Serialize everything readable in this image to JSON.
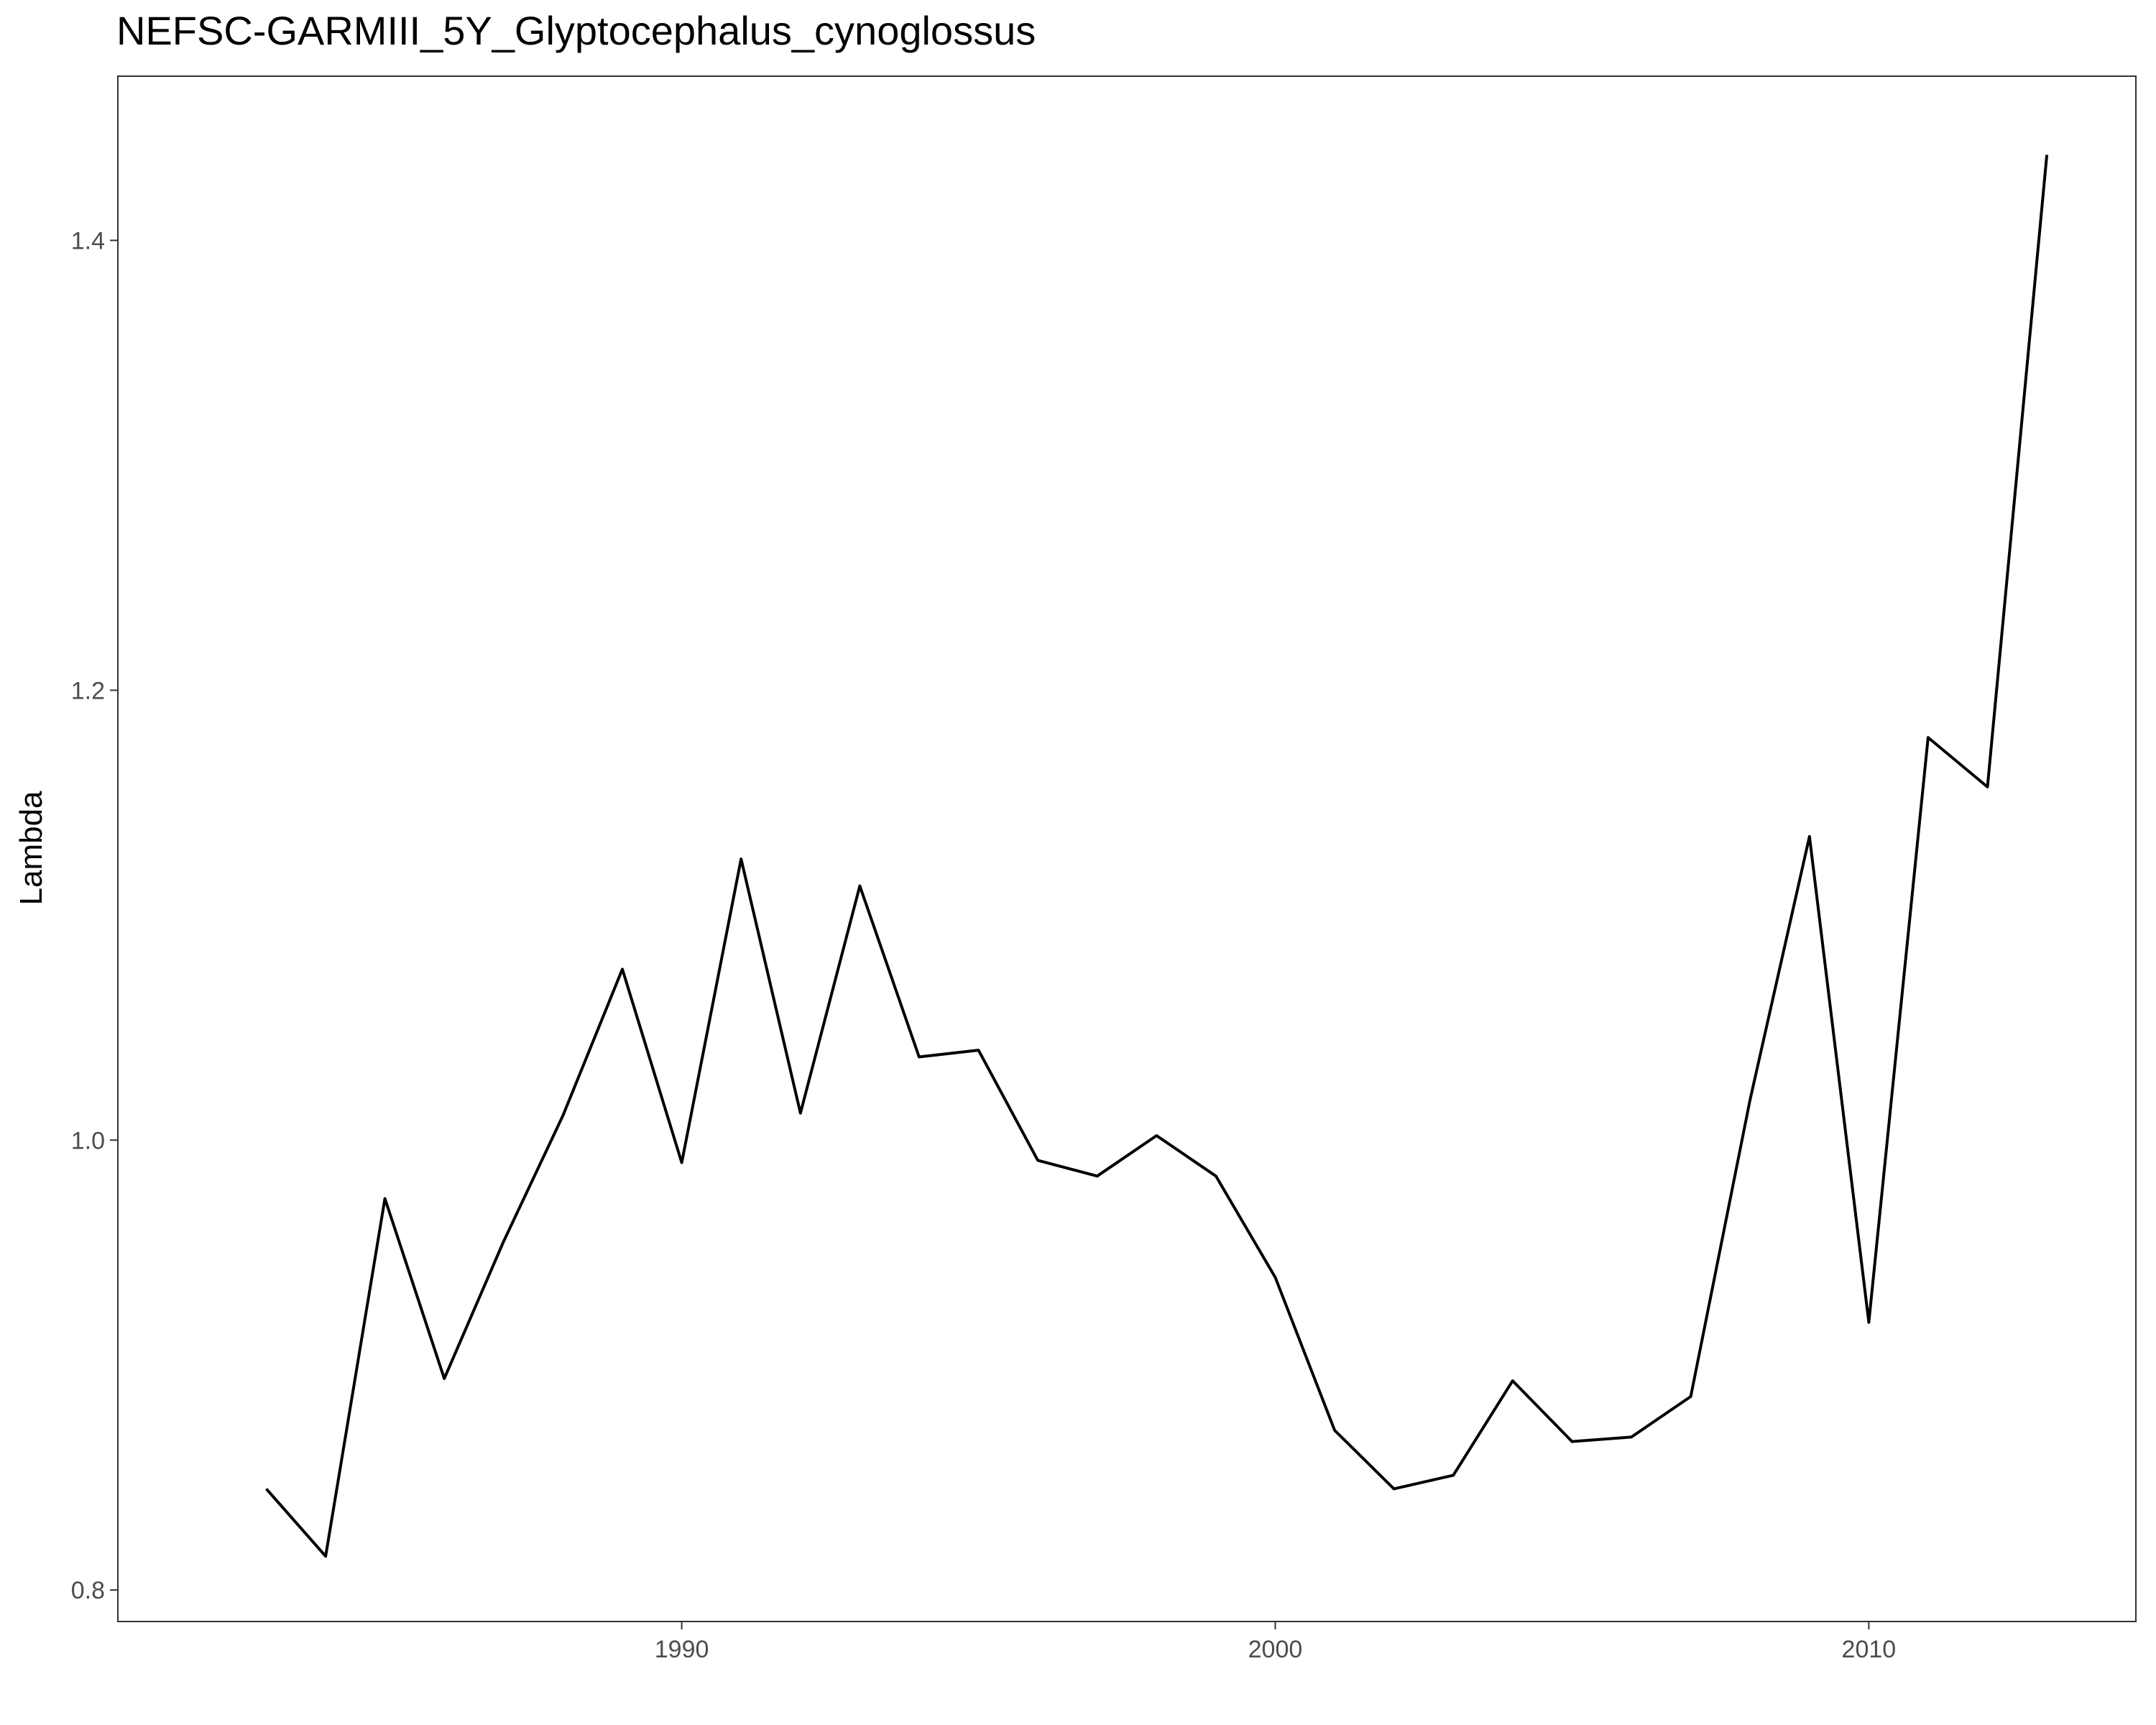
{
  "chart_data": {
    "type": "line",
    "title": "NEFSC-GARMIII_5Y_Glyptocephalus_cynoglossus",
    "xlabel": "",
    "ylabel": "Lambda",
    "xlim": [
      1980.5,
      2014.5
    ],
    "ylim": [
      0.786,
      1.473
    ],
    "x_ticks": [
      1990,
      2000,
      2010
    ],
    "x_tick_labels": [
      "1990",
      "2000",
      "2010"
    ],
    "y_ticks": [
      0.8,
      1.0,
      1.2,
      1.4
    ],
    "y_tick_labels": [
      "0.8",
      "1.0",
      "1.2",
      "1.4"
    ],
    "grid": false,
    "line_color": "#000000",
    "x": [
      1983,
      1984,
      1985,
      1986,
      1987,
      1988,
      1989,
      1990,
      1991,
      1992,
      1993,
      1994,
      1995,
      1996,
      1997,
      1998,
      1999,
      2000,
      2001,
      2002,
      2003,
      2004,
      2005,
      2006,
      2007,
      2008,
      2009,
      2010,
      2011,
      2012,
      2013
    ],
    "values": [
      0.845,
      0.815,
      0.974,
      0.894,
      0.955,
      1.011,
      1.076,
      0.99,
      1.125,
      1.012,
      1.113,
      1.037,
      1.04,
      0.991,
      0.984,
      1.002,
      0.984,
      0.939,
      0.871,
      0.845,
      0.851,
      0.893,
      0.866,
      0.868,
      0.886,
      1.018,
      1.135,
      0.919,
      1.179,
      1.157,
      1.438
    ]
  }
}
